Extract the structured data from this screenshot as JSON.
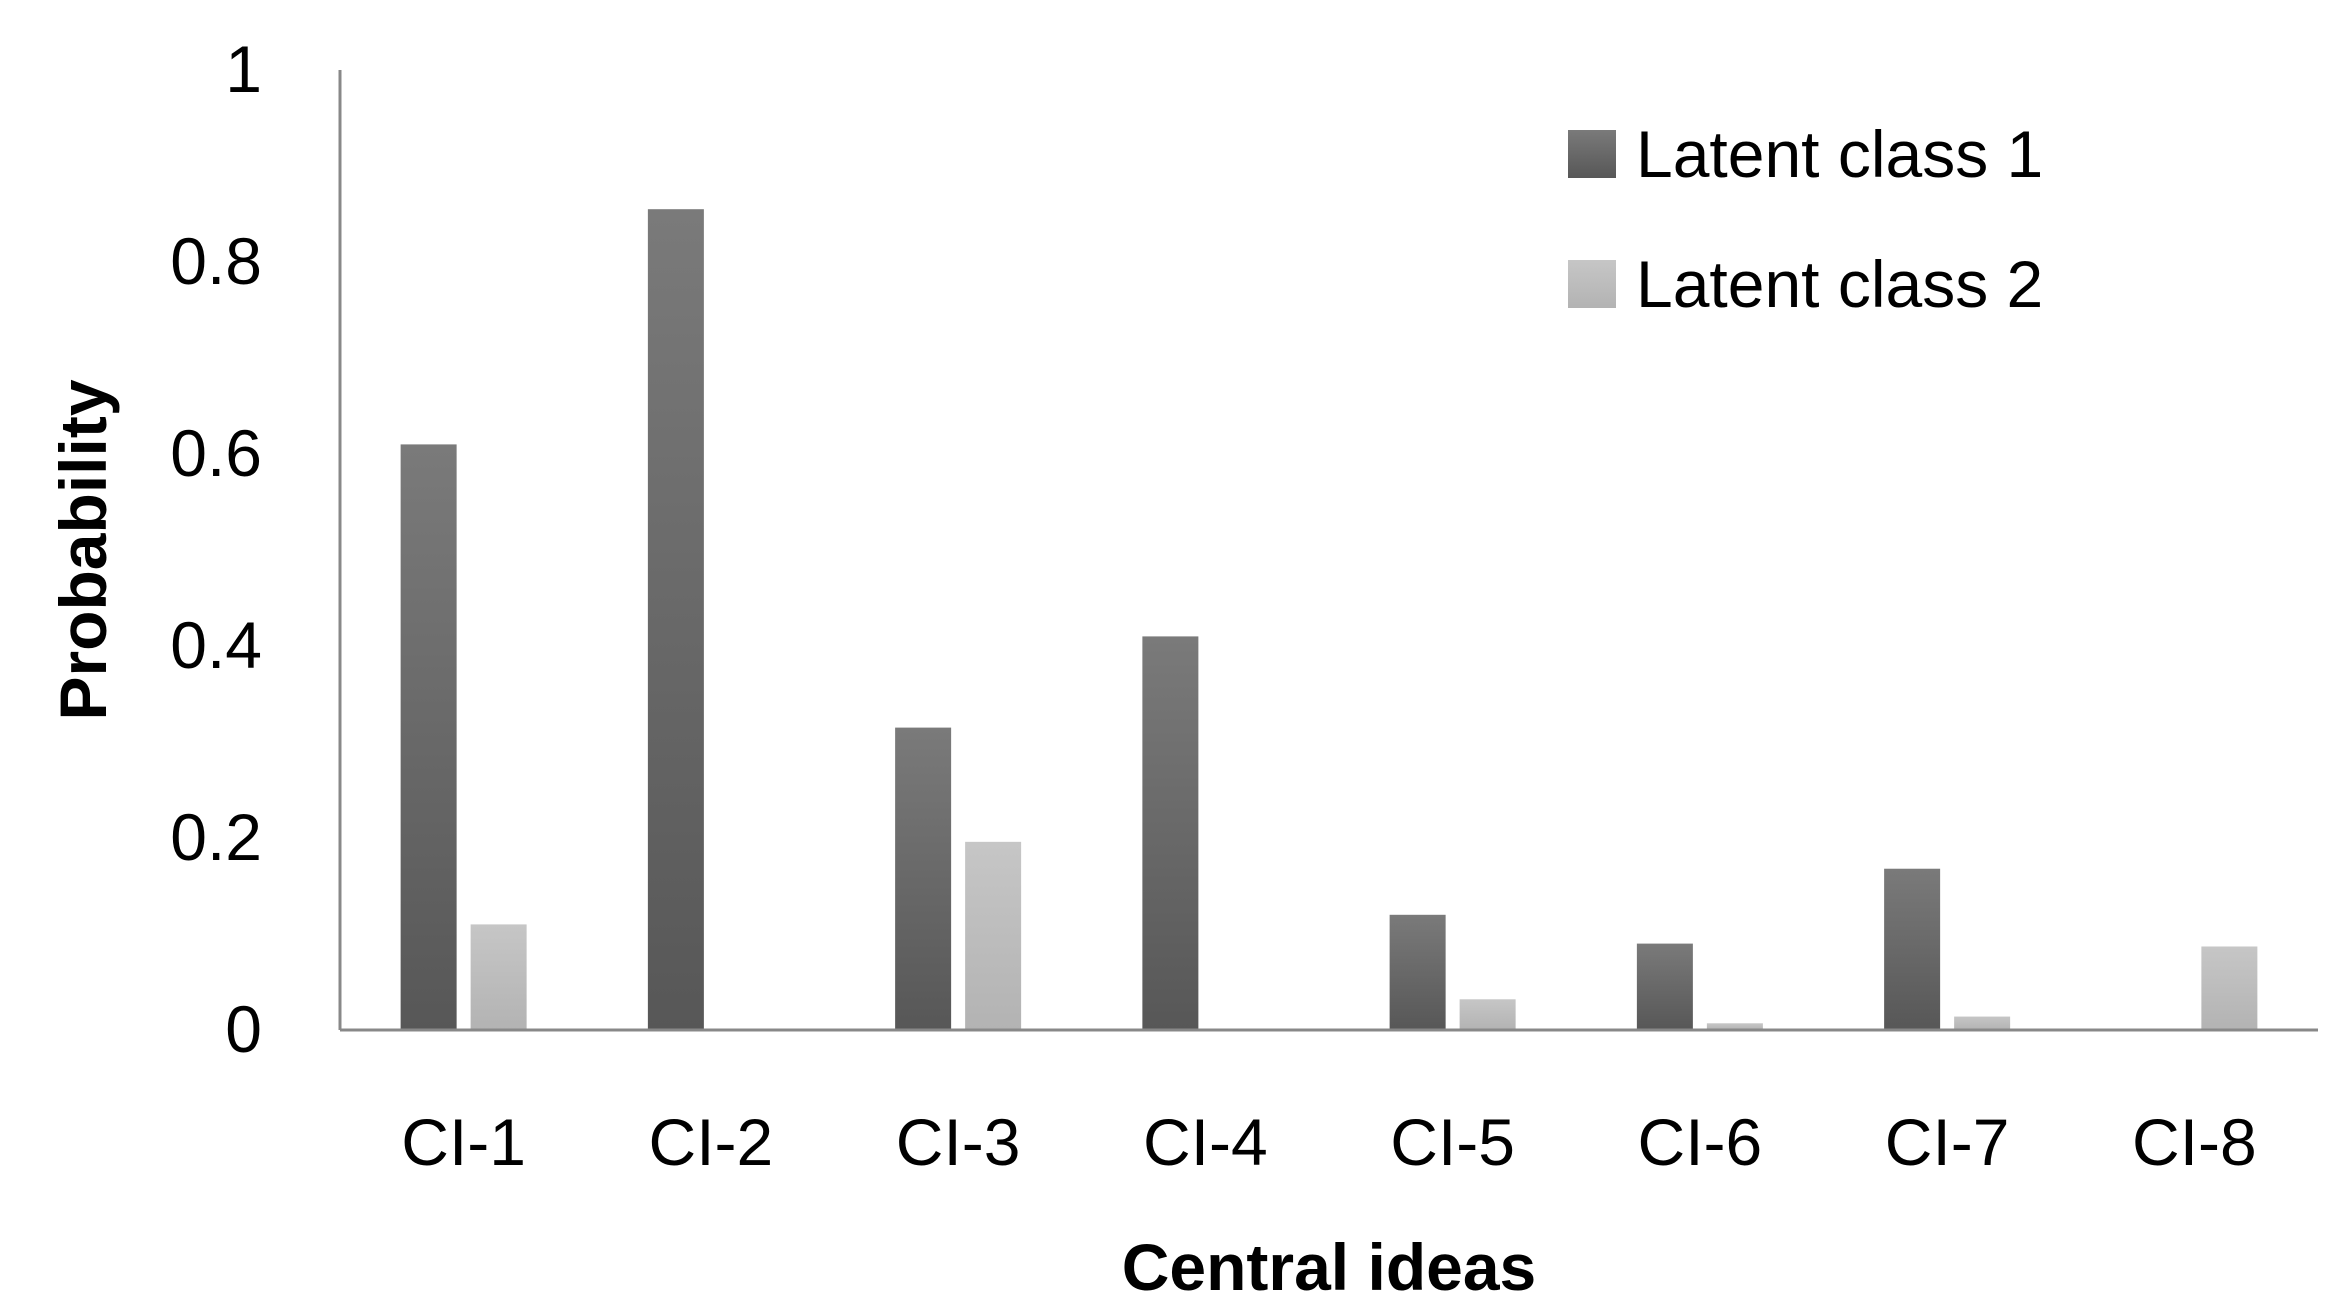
{
  "chart_data": {
    "type": "bar",
    "title": "",
    "xlabel": "Central ideas",
    "ylabel": "Probability",
    "categories": [
      "CI-1",
      "CI-2",
      "CI-3",
      "CI-4",
      "CI-5",
      "CI-6",
      "CI-7",
      "CI-8"
    ],
    "series": [
      {
        "name": "Latent class 1",
        "values": [
          0.61,
          0.855,
          0.315,
          0.41,
          0.12,
          0.09,
          0.168,
          0.0
        ],
        "color": "#666666"
      },
      {
        "name": "Latent class 2",
        "values": [
          0.11,
          0.0,
          0.196,
          0.0,
          0.032,
          0.007,
          0.014,
          0.087
        ],
        "color": "#bfbfbf"
      }
    ],
    "ylim": [
      0,
      1
    ],
    "yticks": [
      "0",
      "0.2",
      "0.4",
      "0.6",
      "0.8",
      "1"
    ],
    "ytick_values": [
      0,
      0.2,
      0.4,
      0.6,
      0.8,
      1
    ],
    "grid": false,
    "legend_position": "top-right",
    "axis_color": "#888888"
  }
}
